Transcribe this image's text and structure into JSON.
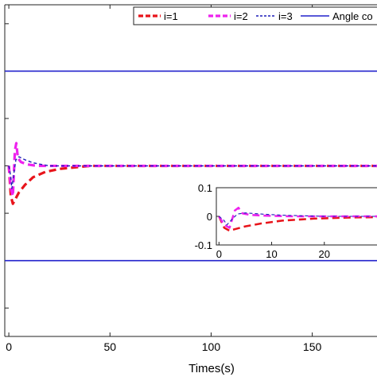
{
  "chart_data": {
    "type": "line",
    "xlabel": "Times(s)",
    "ylabel": "",
    "title": "",
    "xlim": [
      -2,
      182
    ],
    "ylim": [
      -0.9,
      0.85
    ],
    "xticks": [
      0,
      50,
      100,
      150
    ],
    "xtick_labels": [
      "0",
      "50",
      "100",
      "150"
    ],
    "legend": {
      "placement": "top-right",
      "entries": [
        "i=1",
        "i=2",
        "i=3",
        "Angle co"
      ]
    },
    "grid": false,
    "series": [
      {
        "name": "i=1",
        "color": "#e8141b",
        "style": "dashed-thick",
        "x": [
          0,
          1,
          2,
          3,
          5,
          8,
          12,
          18,
          25,
          40,
          80,
          182
        ],
        "y": [
          0,
          -0.04,
          -0.05,
          -0.045,
          -0.035,
          -0.025,
          -0.015,
          -0.008,
          -0.004,
          0,
          0,
          0
        ]
      },
      {
        "name": "i=2",
        "color": "#ee22ee",
        "style": "dashed-thick",
        "x": [
          0,
          1,
          2,
          3,
          3.7,
          4.5,
          6,
          9,
          14,
          20,
          40,
          182
        ],
        "y": [
          0,
          -0.03,
          -0.04,
          0.02,
          0.03,
          0.01,
          0.005,
          0.002,
          0,
          0,
          0,
          0
        ]
      },
      {
        "name": "i=3",
        "color": "#1c1cb8",
        "style": "dashed-thin",
        "x": [
          0,
          1,
          1.5,
          2.5,
          3.5,
          5,
          8,
          12,
          20,
          182
        ],
        "y": [
          0,
          -0.015,
          -0.03,
          -0.01,
          0.008,
          0.012,
          0.008,
          0.004,
          0,
          0
        ]
      },
      {
        "name": "Angle co",
        "color": "#2222cc",
        "style": "solid",
        "segments": [
          {
            "x": [
              -2,
              182
            ],
            "y": [
              0.5,
              0.5
            ]
          },
          {
            "x": [
              -2,
              182
            ],
            "y": [
              -0.5,
              -0.5
            ]
          }
        ]
      }
    ],
    "inset": {
      "xlim": [
        -0.5,
        30
      ],
      "ylim": [
        -0.1,
        0.1
      ],
      "xticks": [
        0,
        10,
        20
      ],
      "xtick_labels": [
        "0",
        "10",
        "20"
      ],
      "yticks": [
        -0.1,
        0,
        0.1
      ],
      "ytick_labels": [
        "-0.1",
        "0",
        "0.1"
      ]
    }
  }
}
